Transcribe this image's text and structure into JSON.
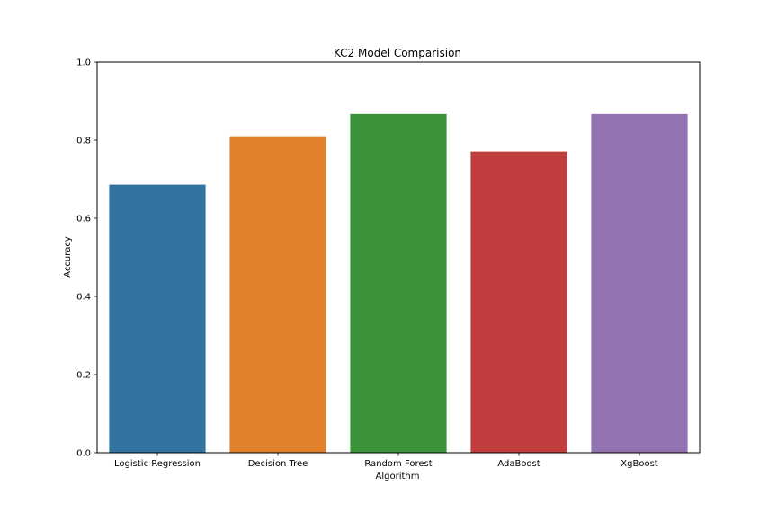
{
  "chart_data": {
    "type": "bar",
    "title": "KC2 Model Comparision",
    "xlabel": "Algorithm",
    "ylabel": "Accuracy",
    "categories": [
      "Logistic Regression",
      "Decision Tree",
      "Random Forest",
      "AdaBoost",
      "XgBoost"
    ],
    "values": [
      0.686,
      0.81,
      0.867,
      0.771,
      0.867
    ],
    "colors": [
      "#3274a1",
      "#e1812c",
      "#3a923a",
      "#c03d3e",
      "#9372b2"
    ],
    "ylim": [
      0,
      1
    ],
    "yticks": [
      "0.0",
      "0.2",
      "0.4",
      "0.6",
      "0.8",
      "1.0"
    ],
    "grid": false,
    "legend": "none"
  }
}
